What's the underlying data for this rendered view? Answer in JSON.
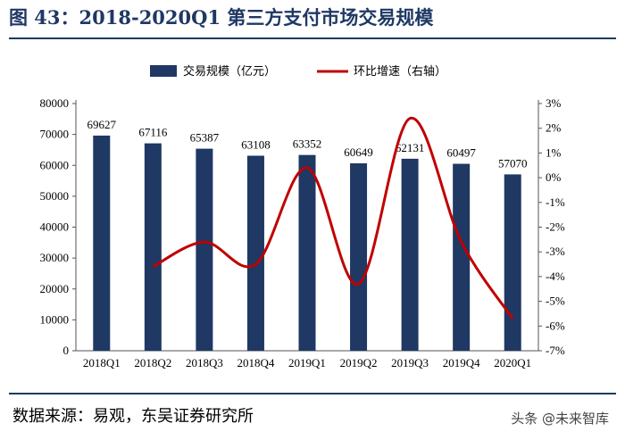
{
  "title": "图 43：2018-2020Q1 第三方支付市场交易规模",
  "source": "数据来源：易观，东吴证券研究所",
  "watermark": "头条 @未来智库",
  "colors": {
    "bar": "#1f3864",
    "line": "#c00000",
    "title": "#1f3864"
  },
  "chart_data": {
    "type": "bar+line",
    "title": "2018-2020Q1 第三方支付市场交易规模",
    "categories": [
      "2018Q1",
      "2018Q2",
      "2018Q3",
      "2018Q4",
      "2019Q1",
      "2019Q2",
      "2019Q3",
      "2019Q4",
      "2020Q1"
    ],
    "series": [
      {
        "name": "交易规模（亿元）",
        "type": "bar",
        "axis": "left",
        "values": [
          69627,
          67116,
          65387,
          63108,
          63352,
          60649,
          62131,
          60497,
          57070
        ],
        "labels": [
          "69627",
          "67116",
          "65387",
          "63108",
          "63352",
          "60649",
          "62131",
          "60497",
          "57070"
        ]
      },
      {
        "name": "环比增速（右轴）",
        "type": "line",
        "axis": "right",
        "smooth": true,
        "values": [
          null,
          -3.6,
          -2.6,
          -3.5,
          0.4,
          -4.3,
          2.4,
          -2.6,
          -5.7
        ]
      }
    ],
    "y_left": {
      "min": 0,
      "max": 80000,
      "ticks": [
        "0",
        "10000",
        "20000",
        "30000",
        "40000",
        "50000",
        "60000",
        "70000",
        "80000"
      ]
    },
    "y_right": {
      "min": -7,
      "max": 3,
      "ticks": [
        "3%",
        "2%",
        "1%",
        "0%",
        "-1%",
        "-2%",
        "-3%",
        "-4%",
        "-5%",
        "-6%",
        "-7%"
      ]
    },
    "legend_position": "top-center"
  }
}
